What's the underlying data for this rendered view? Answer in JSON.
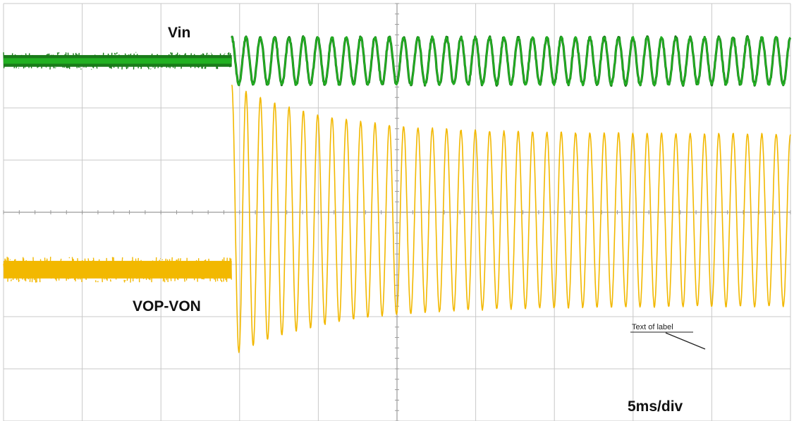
{
  "chart_data": {
    "type": "line",
    "title": "",
    "xlabel": "",
    "ylabel": "",
    "grid": true,
    "timebase_label": "5ms/div",
    "annotation_text": "Text of label",
    "x_divisions": 10,
    "y_divisions": 8,
    "x_unit": "ms",
    "series": [
      {
        "name": "Vin",
        "color": "#22b022",
        "color_dark": "#1a7a1a",
        "segments": [
          {
            "x": [
              0,
              14.5
            ],
            "level": 6.9,
            "noise_pp": 0.3,
            "shape": "flat"
          },
          {
            "x": [
              14.5,
              50
            ],
            "center": 6.9,
            "amplitude": 0.45,
            "cycles": 39,
            "shape": "sine"
          }
        ]
      },
      {
        "name": "VOP-VON",
        "color": "#f2b800",
        "segments": [
          {
            "x": [
              0,
              14.5
            ],
            "level": 2.9,
            "noise_pp": 0.45,
            "shape": "flat"
          },
          {
            "x": [
              14.5,
              50
            ],
            "center": 3.85,
            "amplitude_start": 2.6,
            "amplitude_steady": 1.65,
            "cycles": 39,
            "shape": "decaying-sine"
          }
        ]
      }
    ]
  }
}
